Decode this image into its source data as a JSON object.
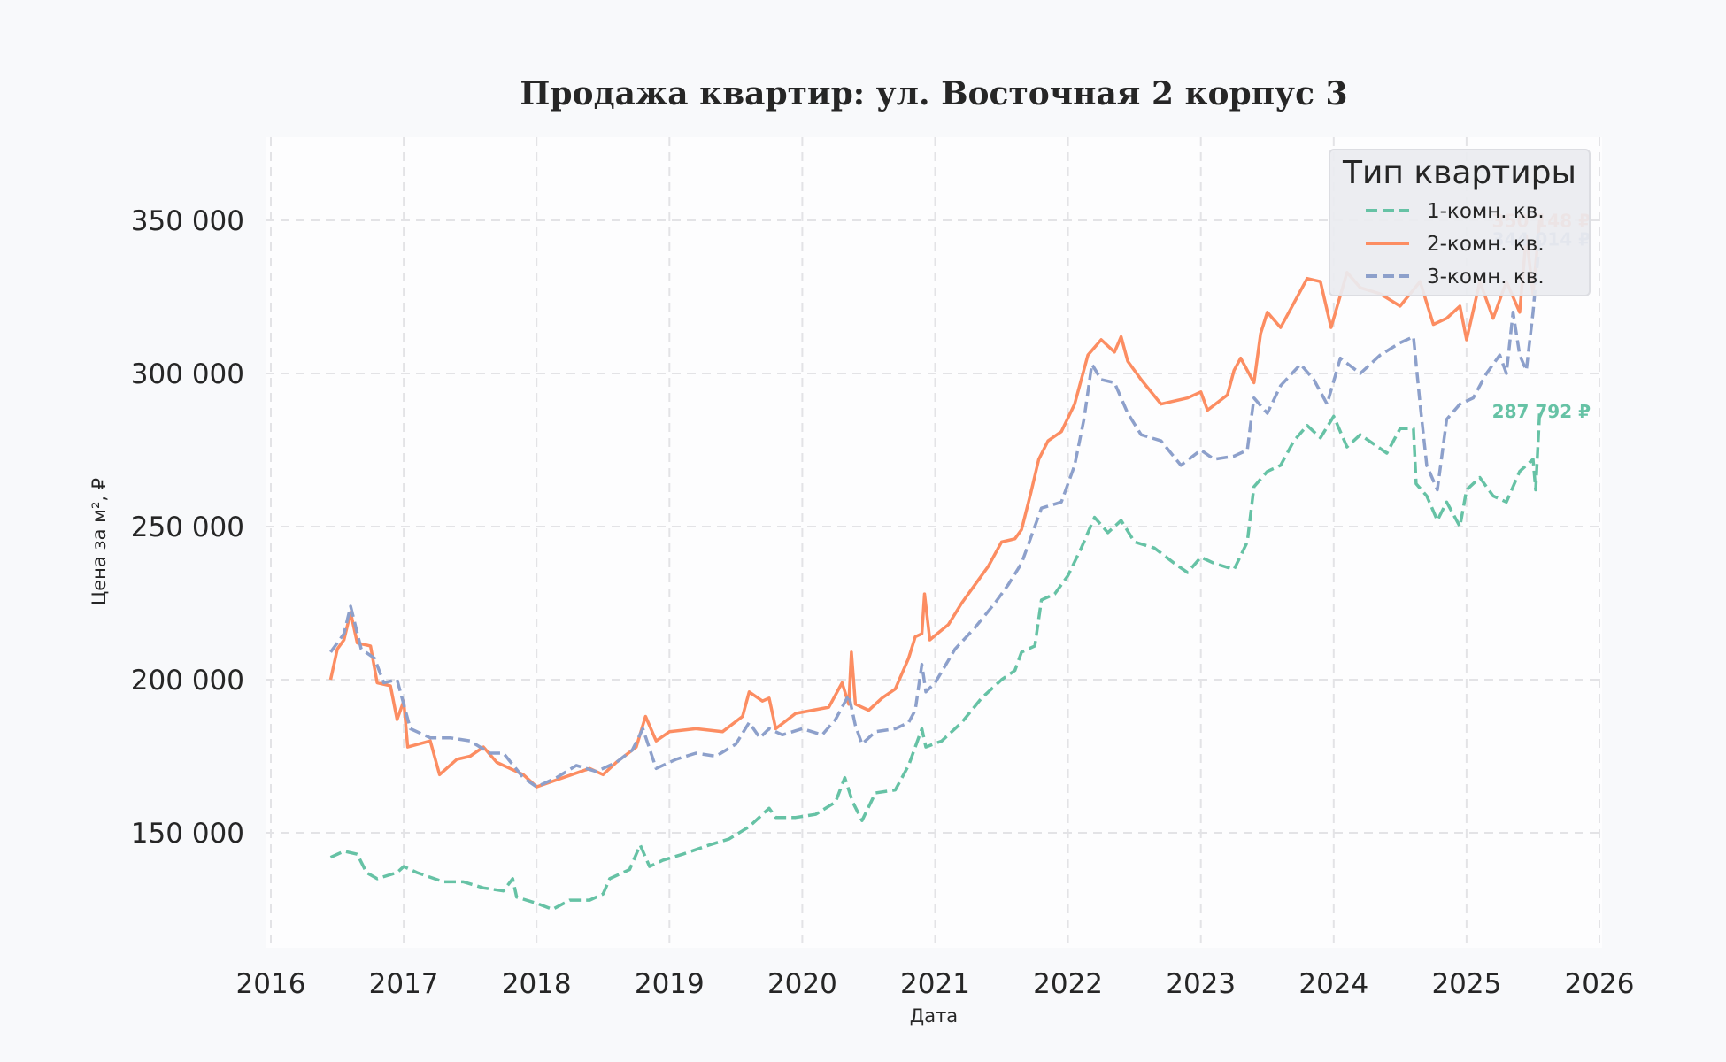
{
  "chart_data": {
    "type": "line",
    "title": "Продажа квартир: ул. Восточная 2 корпус 3",
    "xlabel": "Дата",
    "ylabel": "Цена за м², ₽",
    "xlim": [
      2016,
      2026
    ],
    "ylim": [
      113500,
      374000
    ],
    "x_ticks": [
      2016,
      2017,
      2018,
      2019,
      2020,
      2021,
      2022,
      2023,
      2024,
      2025,
      2026
    ],
    "x_tick_labels": [
      "2016",
      "2017",
      "2018",
      "2019",
      "2020",
      "2021",
      "2022",
      "2023",
      "2024",
      "2025",
      "2026"
    ],
    "y_ticks": [
      150000,
      200000,
      250000,
      300000,
      350000
    ],
    "y_tick_labels": [
      "150 000",
      "200 000",
      "250 000",
      "300 000",
      "350 000"
    ],
    "grid": true,
    "legend": {
      "title": "Тип квартиры",
      "position": "upper right"
    },
    "series": [
      {
        "name": "1-комн. кв.",
        "color": "#66c2a5",
        "style": "dashed",
        "end_label": "287 792 ₽",
        "x": [
          2016.45,
          2016.55,
          2016.65,
          2016.72,
          2016.8,
          2016.95,
          2017.0,
          2017.1,
          2017.3,
          2017.45,
          2017.6,
          2017.75,
          2017.82,
          2017.85,
          2018.0,
          2018.12,
          2018.25,
          2018.4,
          2018.5,
          2018.55,
          2018.7,
          2018.78,
          2018.85,
          2018.95,
          2019.1,
          2019.3,
          2019.45,
          2019.6,
          2019.75,
          2019.8,
          2019.95,
          2020.1,
          2020.25,
          2020.32,
          2020.38,
          2020.45,
          2020.55,
          2020.7,
          2020.8,
          2020.9,
          2020.93,
          2021.05,
          2021.2,
          2021.35,
          2021.5,
          2021.6,
          2021.65,
          2021.75,
          2021.8,
          2021.9,
          2022.0,
          2022.1,
          2022.2,
          2022.3,
          2022.4,
          2022.5,
          2022.65,
          2022.8,
          2022.9,
          2023.0,
          2023.1,
          2023.25,
          2023.35,
          2023.4,
          2023.5,
          2023.6,
          2023.7,
          2023.8,
          2023.9,
          2024.0,
          2024.1,
          2024.2,
          2024.3,
          2024.4,
          2024.5,
          2024.6,
          2024.62,
          2024.7,
          2024.78,
          2024.85,
          2024.95,
          2025.0,
          2025.1,
          2025.2,
          2025.3,
          2025.4,
          2025.5,
          2025.52,
          2025.55
        ],
        "values": [
          142000,
          144000,
          143000,
          137000,
          135000,
          137000,
          139000,
          137000,
          134000,
          134000,
          132000,
          131000,
          135000,
          129000,
          127000,
          125000,
          128000,
          128000,
          130000,
          135000,
          138000,
          146000,
          139000,
          141000,
          143000,
          146000,
          148000,
          152000,
          158000,
          155000,
          155000,
          156000,
          160000,
          168000,
          160000,
          154000,
          163000,
          164000,
          172000,
          184000,
          178000,
          180000,
          186000,
          194000,
          200000,
          203000,
          209000,
          211000,
          226000,
          228000,
          234000,
          243000,
          253000,
          248000,
          252000,
          245000,
          243000,
          238000,
          235000,
          240000,
          238000,
          236000,
          245000,
          263000,
          268000,
          270000,
          278000,
          283000,
          279000,
          286000,
          276000,
          280000,
          277000,
          274000,
          282000,
          282000,
          264000,
          260000,
          252000,
          258000,
          250000,
          262000,
          266000,
          260000,
          258000,
          268000,
          272000,
          262000,
          287792
        ]
      },
      {
        "name": "2-комн. кв.",
        "color": "#fc8d62",
        "style": "solid",
        "end_label": "350 148 ₽",
        "x": [
          2016.45,
          2016.5,
          2016.55,
          2016.6,
          2016.65,
          2016.75,
          2016.8,
          2016.9,
          2016.95,
          2017.0,
          2017.03,
          2017.2,
          2017.27,
          2017.4,
          2017.5,
          2017.6,
          2017.7,
          2017.9,
          2018.0,
          2018.2,
          2018.4,
          2018.5,
          2018.6,
          2018.75,
          2018.82,
          2018.9,
          2019.0,
          2019.2,
          2019.4,
          2019.55,
          2019.6,
          2019.7,
          2019.75,
          2019.8,
          2019.95,
          2020.2,
          2020.3,
          2020.35,
          2020.37,
          2020.4,
          2020.5,
          2020.6,
          2020.7,
          2020.8,
          2020.85,
          2020.9,
          2020.92,
          2020.96,
          2021.1,
          2021.2,
          2021.3,
          2021.4,
          2021.5,
          2021.6,
          2021.65,
          2021.72,
          2021.78,
          2021.85,
          2021.95,
          2022.05,
          2022.15,
          2022.25,
          2022.35,
          2022.4,
          2022.45,
          2022.55,
          2022.7,
          2022.9,
          2023.0,
          2023.05,
          2023.2,
          2023.25,
          2023.3,
          2023.4,
          2023.45,
          2023.5,
          2023.6,
          2023.7,
          2023.8,
          2023.9,
          2023.98,
          2024.1,
          2024.2,
          2024.35,
          2024.5,
          2024.65,
          2024.75,
          2024.85,
          2024.95,
          2025.0,
          2025.1,
          2025.2,
          2025.3,
          2025.4,
          2025.45,
          2025.5,
          2025.55
        ],
        "values": [
          200000,
          210000,
          213000,
          222000,
          212000,
          211000,
          199000,
          198000,
          187000,
          193000,
          178000,
          180000,
          169000,
          174000,
          175000,
          178000,
          173000,
          169000,
          165000,
          168000,
          171000,
          169000,
          173000,
          178000,
          188000,
          180000,
          183000,
          184000,
          183000,
          188000,
          196000,
          193000,
          194000,
          184000,
          189000,
          191000,
          199000,
          192000,
          209000,
          192000,
          190000,
          194000,
          197000,
          207000,
          214000,
          215000,
          228000,
          213000,
          218000,
          225000,
          231000,
          237000,
          245000,
          246000,
          249000,
          261000,
          272000,
          278000,
          281000,
          290000,
          306000,
          311000,
          307000,
          312000,
          304000,
          298000,
          290000,
          292000,
          294000,
          288000,
          293000,
          301000,
          305000,
          297000,
          313000,
          320000,
          315000,
          323000,
          331000,
          330000,
          315000,
          333000,
          328000,
          326000,
          322000,
          330000,
          316000,
          318000,
          322000,
          311000,
          330000,
          318000,
          330000,
          320000,
          345000,
          326000,
          350148
        ]
      },
      {
        "name": "3-комн. кв.",
        "color": "#8da0cb",
        "style": "dashed",
        "end_label": "344 014 ₽",
        "x": [
          2016.45,
          2016.55,
          2016.6,
          2016.68,
          2016.78,
          2016.85,
          2016.95,
          2017.05,
          2017.2,
          2017.35,
          2017.5,
          2017.65,
          2017.75,
          2017.9,
          2018.0,
          2018.15,
          2018.3,
          2018.45,
          2018.6,
          2018.72,
          2018.8,
          2018.9,
          2019.05,
          2019.2,
          2019.35,
          2019.5,
          2019.6,
          2019.68,
          2019.75,
          2019.85,
          2020.0,
          2020.15,
          2020.25,
          2020.35,
          2020.4,
          2020.45,
          2020.55,
          2020.7,
          2020.8,
          2020.85,
          2020.9,
          2020.93,
          2021.0,
          2021.15,
          2021.3,
          2021.45,
          2021.55,
          2021.65,
          2021.75,
          2021.8,
          2021.95,
          2022.05,
          2022.12,
          2022.18,
          2022.25,
          2022.35,
          2022.45,
          2022.55,
          2022.7,
          2022.85,
          2023.0,
          2023.1,
          2023.25,
          2023.35,
          2023.4,
          2023.5,
          2023.6,
          2023.75,
          2023.85,
          2023.95,
          2024.05,
          2024.2,
          2024.35,
          2024.5,
          2024.6,
          2024.65,
          2024.7,
          2024.78,
          2024.85,
          2024.95,
          2025.05,
          2025.15,
          2025.25,
          2025.3,
          2025.35,
          2025.4,
          2025.45,
          2025.5,
          2025.55
        ],
        "values": [
          209000,
          215000,
          224000,
          210000,
          207000,
          199000,
          200000,
          184000,
          181000,
          181000,
          180000,
          176000,
          176000,
          168000,
          165000,
          168000,
          172000,
          170000,
          173000,
          177000,
          184000,
          171000,
          174000,
          176000,
          175000,
          179000,
          186000,
          181000,
          184000,
          182000,
          184000,
          182000,
          187000,
          195000,
          185000,
          179000,
          183000,
          184000,
          186000,
          190000,
          205000,
          196000,
          199000,
          210000,
          217000,
          225000,
          231000,
          238000,
          250000,
          256000,
          258000,
          270000,
          285000,
          303000,
          298000,
          297000,
          287000,
          280000,
          278000,
          270000,
          275000,
          272000,
          273000,
          275000,
          292000,
          287000,
          296000,
          303000,
          298000,
          290000,
          305000,
          300000,
          306000,
          310000,
          312000,
          290000,
          270000,
          262000,
          285000,
          290000,
          292000,
          300000,
          306000,
          300000,
          320000,
          306000,
          301000,
          320000,
          344014
        ]
      }
    ]
  }
}
